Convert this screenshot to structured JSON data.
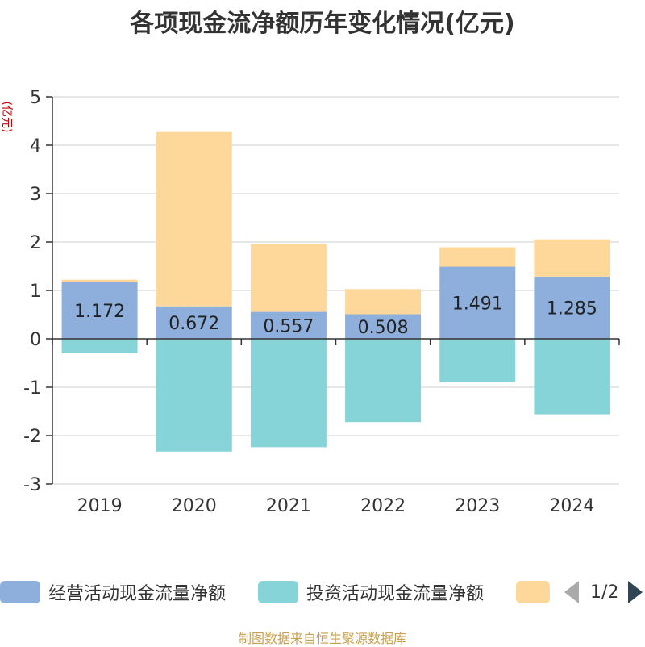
{
  "title": "各项现金流净额历年变化情况(亿元)",
  "source_text": "制图数据来自恒生聚源数据库",
  "legend": {
    "items": [
      {
        "label": "经营活动现金流量净额",
        "color": "#8eaedb"
      },
      {
        "label": "投资活动现金流量净额",
        "color": "#86d4d8"
      },
      {
        "label": "",
        "color": "#fdd89a"
      }
    ],
    "page_text": "1/2"
  },
  "chart_data": {
    "type": "bar",
    "stacked": true,
    "title": "各项现金流净额历年变化情况(亿元)",
    "ylabel": "(亿元)",
    "xlabel": "",
    "categories": [
      "2019",
      "2020",
      "2021",
      "2022",
      "2023",
      "2024"
    ],
    "ylim": [
      -3,
      5
    ],
    "yticks": [
      5,
      4,
      3,
      2,
      1,
      0,
      -1,
      -2,
      -3
    ],
    "grid": true,
    "legend_position": "bottom",
    "series": [
      {
        "name": "经营活动现金流量净额",
        "color": "#8eaedb",
        "values": [
          1.172,
          0.672,
          0.557,
          0.508,
          1.491,
          1.285
        ],
        "data_labels": [
          "1.172",
          "0.672",
          "0.557",
          "0.508",
          "1.491",
          "1.285"
        ]
      },
      {
        "name": "投资活动现金流量净额",
        "color": "#86d4d8",
        "values": [
          -0.3,
          -2.33,
          -2.24,
          -1.72,
          -0.9,
          -1.56
        ]
      },
      {
        "color": "#fdd89a",
        "values": [
          0.05,
          3.6,
          1.4,
          0.52,
          0.4,
          0.77
        ]
      }
    ]
  }
}
